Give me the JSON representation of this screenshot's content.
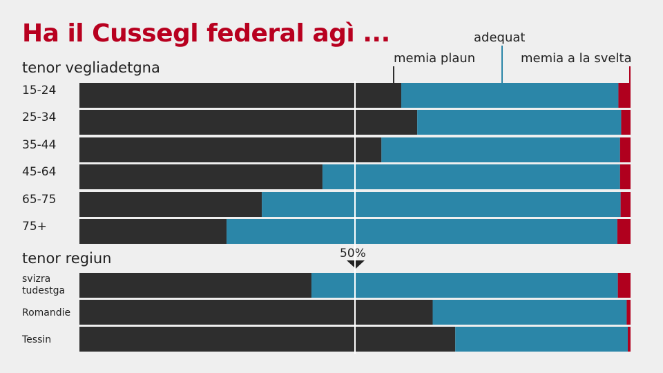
{
  "chart_data": {
    "type": "bar",
    "stacked": true,
    "percent_stacked": true,
    "title": "Ha il Cussegl federal agì ...",
    "series": [
      {
        "name": "memia plaun",
        "color": "#2e2e2e"
      },
      {
        "name": "adequat",
        "color": "#2b86a8"
      },
      {
        "name": "memia a la svelta",
        "color": "#b0001e"
      }
    ],
    "groups": [
      {
        "label": "tenor vegliadetgna",
        "rows": [
          {
            "label": "15-24",
            "values": [
              58.4,
              39.4,
              2.2
            ]
          },
          {
            "label": "25-34",
            "values": [
              61.3,
              37.0,
              1.7
            ]
          },
          {
            "label": "35-44",
            "values": [
              54.8,
              43.3,
              1.9
            ]
          },
          {
            "label": "45-64",
            "values": [
              44.1,
              54.0,
              1.9
            ]
          },
          {
            "label": "65-75",
            "values": [
              33.1,
              65.1,
              1.8
            ]
          },
          {
            "label": "75+",
            "values": [
              26.7,
              70.9,
              2.4
            ]
          }
        ]
      },
      {
        "label": "tenor regiun",
        "rows": [
          {
            "label": "svizra tudestga",
            "label_lines": [
              "svizra",
              "tudestga"
            ],
            "values": [
              42.1,
              55.6,
              2.3
            ]
          },
          {
            "label": "Romandie",
            "values": [
              64.1,
              35.2,
              0.7
            ]
          },
          {
            "label": "Tessin",
            "values": [
              68.2,
              31.3,
              0.5
            ]
          }
        ]
      }
    ],
    "reference_line": {
      "value": 50,
      "label": "50%"
    },
    "xlim": [
      0,
      100
    ],
    "legend_position": "top-right"
  }
}
